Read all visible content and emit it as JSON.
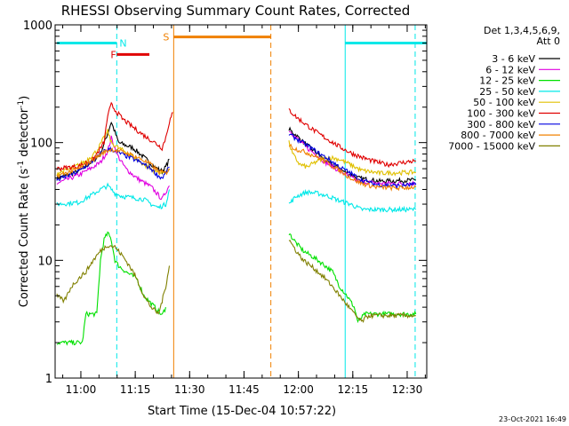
{
  "chart_data": {
    "type": "line",
    "title": "RHESSI Observing Summary Count Rates, Corrected",
    "xlabel": "Start Time (15-Dec-04 10:57:22)",
    "ylabel_main": "Corrected Count Rate (s",
    "ylabel_sup1": "-1",
    "ylabel_mid": " detector",
    "ylabel_sup2": "-1",
    "ylabel_end": ")",
    "y_scale": "log",
    "ylim": [
      1,
      1000
    ],
    "xlim_minutes_after_start": [
      -4.5,
      98
    ],
    "x_ticks": [
      {
        "label": "11:00",
        "m": 2.6
      },
      {
        "label": "11:15",
        "m": 17.6
      },
      {
        "label": "11:30",
        "m": 32.6
      },
      {
        "label": "11:45",
        "m": 47.6
      },
      {
        "label": "12:00",
        "m": 62.6
      },
      {
        "label": "12:15",
        "m": 77.6
      },
      {
        "label": "12:30",
        "m": 92.6
      }
    ],
    "y_ticks": [
      {
        "label": "1",
        "v": 1
      },
      {
        "label": "10",
        "v": 10
      },
      {
        "label": "100",
        "v": 100
      },
      {
        "label": "1000",
        "v": 1000
      }
    ],
    "legend_title": "Det 1,3,4,5,6,9,",
    "legend_subtitle": "Att 0",
    "legend_position": "right",
    "series": [
      {
        "name": "3 - 6 keV",
        "color": "#000000",
        "segments": [
          [
            [
              -4,
              50
            ],
            [
              2,
              57
            ],
            [
              6,
              70
            ],
            [
              8,
              80
            ],
            [
              10,
              120
            ],
            [
              11,
              150
            ],
            [
              13,
              100
            ],
            [
              17,
              90
            ],
            [
              20,
              75
            ],
            [
              23,
              62
            ],
            [
              25,
              57
            ],
            [
              26,
              62
            ],
            [
              27,
              72
            ]
          ],
          [
            [
              60,
              130
            ],
            [
              62,
              115
            ],
            [
              65,
              95
            ],
            [
              68,
              80
            ],
            [
              70,
              70
            ],
            [
              73,
              62
            ],
            [
              76,
              55
            ],
            [
              79,
              50
            ],
            [
              85,
              47
            ],
            [
              95,
              48
            ]
          ]
        ]
      },
      {
        "name": "6 - 12 keV",
        "color": "#e000e0",
        "segments": [
          [
            [
              -4,
              45
            ],
            [
              2,
              53
            ],
            [
              6,
              62
            ],
            [
              8,
              68
            ],
            [
              10,
              85
            ],
            [
              11,
              110
            ],
            [
              12,
              90
            ],
            [
              13,
              75
            ],
            [
              15,
              60
            ],
            [
              18,
              50
            ],
            [
              22,
              42
            ],
            [
              25,
              33
            ],
            [
              26,
              38
            ],
            [
              27,
              43
            ]
          ],
          [
            [
              60,
              128
            ],
            [
              62,
              110
            ],
            [
              65,
              90
            ],
            [
              68,
              77
            ],
            [
              70,
              68
            ],
            [
              73,
              60
            ],
            [
              76,
              53
            ],
            [
              79,
              47
            ],
            [
              85,
              45
            ],
            [
              95,
              45
            ]
          ]
        ]
      },
      {
        "name": "12 - 25 keV",
        "color": "#00e000",
        "segments": [
          [
            [
              -4,
              2
            ],
            [
              3,
              2
            ],
            [
              4,
              3.5
            ],
            [
              7,
              3.5
            ],
            [
              8,
              10
            ],
            [
              9,
              15
            ],
            [
              10,
              17
            ],
            [
              11,
              15
            ],
            [
              12,
              10
            ],
            [
              13,
              9
            ],
            [
              15,
              8
            ],
            [
              18,
              7
            ],
            [
              20,
              5
            ],
            [
              23,
              4
            ],
            [
              25,
              3.4
            ],
            [
              26,
              4
            ]
          ],
          [
            [
              60,
              17
            ],
            [
              62,
              14
            ],
            [
              64,
              12
            ],
            [
              66,
              11
            ],
            [
              68,
              10
            ],
            [
              70,
              9
            ],
            [
              72,
              8
            ],
            [
              74,
              6
            ],
            [
              76,
              5
            ],
            [
              78,
              4
            ],
            [
              79,
              3
            ],
            [
              81,
              3.5
            ],
            [
              95,
              3.5
            ]
          ]
        ]
      },
      {
        "name": "25 - 50 keV",
        "color": "#00e8e8",
        "segments": [
          [
            [
              -4,
              30
            ],
            [
              2,
              31
            ],
            [
              5,
              35
            ],
            [
              8,
              40
            ],
            [
              10,
              43
            ],
            [
              11,
              40
            ],
            [
              12,
              37
            ],
            [
              14,
              35
            ],
            [
              17,
              34
            ],
            [
              20,
              33
            ],
            [
              22,
              30
            ],
            [
              24,
              28
            ],
            [
              26,
              30
            ],
            [
              27,
              40
            ]
          ],
          [
            [
              60,
              30
            ],
            [
              62,
              35
            ],
            [
              65,
              38
            ],
            [
              68,
              37
            ],
            [
              71,
              35
            ],
            [
              74,
              32
            ],
            [
              77,
              30
            ],
            [
              80,
              27
            ],
            [
              85,
              27
            ],
            [
              95,
              27
            ]
          ]
        ]
      },
      {
        "name": "50 - 100 keV",
        "color": "#e0c000",
        "segments": [
          [
            [
              -4,
              55
            ],
            [
              0,
              60
            ],
            [
              4,
              70
            ],
            [
              7,
              85
            ],
            [
              9,
              110
            ],
            [
              10,
              125
            ],
            [
              11,
              100
            ],
            [
              13,
              90
            ],
            [
              16,
              80
            ],
            [
              20,
              65
            ],
            [
              23,
              57
            ],
            [
              25,
              55
            ],
            [
              27,
              60
            ]
          ],
          [
            [
              60,
              100
            ],
            [
              61,
              80
            ],
            [
              63,
              65
            ],
            [
              65,
              62
            ],
            [
              68,
              70
            ],
            [
              71,
              75
            ],
            [
              74,
              72
            ],
            [
              77,
              65
            ],
            [
              80,
              58
            ],
            [
              85,
              55
            ],
            [
              95,
              56
            ]
          ]
        ]
      },
      {
        "name": "100 - 300 keV",
        "color": "#e00000",
        "segments": [
          [
            [
              -4,
              60
            ],
            [
              2,
              63
            ],
            [
              6,
              72
            ],
            [
              9,
              100
            ],
            [
              10,
              170
            ],
            [
              11,
              210
            ],
            [
              12,
              190
            ],
            [
              14,
              160
            ],
            [
              17,
              135
            ],
            [
              20,
              115
            ],
            [
              23,
              100
            ],
            [
              25,
              90
            ],
            [
              26,
              110
            ],
            [
              27,
              150
            ],
            [
              28,
              180
            ]
          ],
          [
            [
              60,
              190
            ],
            [
              62,
              165
            ],
            [
              65,
              140
            ],
            [
              68,
              120
            ],
            [
              71,
              105
            ],
            [
              74,
              92
            ],
            [
              77,
              82
            ],
            [
              80,
              75
            ],
            [
              83,
              70
            ],
            [
              87,
              65
            ],
            [
              95,
              70
            ]
          ]
        ]
      },
      {
        "name": "300 - 800 keV",
        "color": "#0000e0",
        "segments": [
          [
            [
              -4,
              48
            ],
            [
              2,
              57
            ],
            [
              6,
              70
            ],
            [
              9,
              85
            ],
            [
              11,
              88
            ],
            [
              13,
              82
            ],
            [
              16,
              75
            ],
            [
              19,
              68
            ],
            [
              22,
              60
            ],
            [
              24,
              52
            ],
            [
              25,
              50
            ],
            [
              26,
              55
            ],
            [
              27,
              62
            ]
          ],
          [
            [
              60,
              118
            ],
            [
              62,
              108
            ],
            [
              65,
              95
            ],
            [
              68,
              82
            ],
            [
              71,
              72
            ],
            [
              74,
              62
            ],
            [
              77,
              55
            ],
            [
              80,
              48
            ],
            [
              84,
              44
            ],
            [
              90,
              43
            ],
            [
              95,
              44
            ]
          ]
        ]
      },
      {
        "name": "800 - 7000 keV",
        "color": "#f08000",
        "segments": [
          [
            [
              -4,
              52
            ],
            [
              2,
              60
            ],
            [
              6,
              72
            ],
            [
              9,
              83
            ],
            [
              11,
              88
            ],
            [
              13,
              85
            ],
            [
              16,
              80
            ],
            [
              19,
              73
            ],
            [
              22,
              65
            ],
            [
              24,
              57
            ],
            [
              26,
              55
            ],
            [
              27,
              60
            ]
          ],
          [
            [
              60,
              95
            ],
            [
              62,
              88
            ],
            [
              65,
              82
            ],
            [
              68,
              75
            ],
            [
              71,
              66
            ],
            [
              74,
              58
            ],
            [
              77,
              50
            ],
            [
              80,
              45
            ],
            [
              84,
              42
            ],
            [
              90,
              41
            ],
            [
              95,
              42
            ]
          ]
        ]
      },
      {
        "name": "7000 - 15000 keV",
        "color": "#808000",
        "segments": [
          [
            [
              -4,
              5
            ],
            [
              -2,
              4.5
            ],
            [
              0,
              6
            ],
            [
              2,
              7
            ],
            [
              4,
              8
            ],
            [
              6,
              10
            ],
            [
              8,
              12
            ],
            [
              10,
              13.5
            ],
            [
              12,
              13
            ],
            [
              14,
              11
            ],
            [
              16,
              9
            ],
            [
              18,
              7
            ],
            [
              20,
              5
            ],
            [
              22,
              4
            ],
            [
              24,
              3.5
            ],
            [
              25,
              4.5
            ],
            [
              26,
              6
            ],
            [
              27,
              9
            ]
          ],
          [
            [
              60,
              15
            ],
            [
              62,
              12
            ],
            [
              64,
              10
            ],
            [
              66,
              9
            ],
            [
              68,
              8
            ],
            [
              70,
              7
            ],
            [
              72,
              6
            ],
            [
              74,
              5
            ],
            [
              76,
              4.2
            ],
            [
              78,
              3.5
            ],
            [
              80,
              3
            ],
            [
              82,
              3.4
            ],
            [
              95,
              3.4
            ]
          ]
        ]
      }
    ],
    "overlays": [
      {
        "label": "N",
        "color": "#00e8e8",
        "bar_segments": [
          [
            -4,
            12.5
          ],
          [
            75.5,
            98
          ]
        ],
        "bar_level": 700,
        "vlines": [
          {
            "m": 12.5,
            "dash": true
          },
          {
            "m": 75.5,
            "dash": false
          },
          {
            "m": 94.8,
            "dash": true
          }
        ]
      },
      {
        "label": "F",
        "color": "#e00000",
        "bar_segments": [
          [
            12.5,
            21.5
          ]
        ],
        "bar_level": 560,
        "vlines": []
      },
      {
        "label": "S",
        "color": "#f08000",
        "bar_segments": [
          [
            28.2,
            55
          ]
        ],
        "bar_level": 790,
        "vlines": [
          {
            "m": 28.2,
            "dash": false
          },
          {
            "m": 55.0,
            "dash": true
          }
        ]
      }
    ]
  },
  "footer": {
    "timestamp": "23-Oct-2021 16:49"
  }
}
